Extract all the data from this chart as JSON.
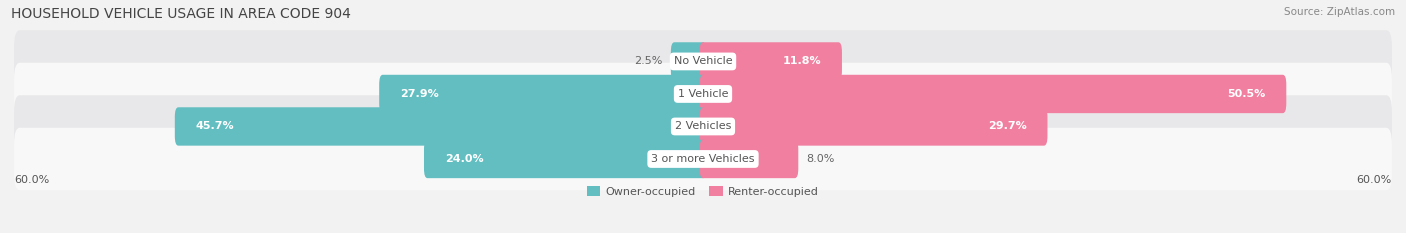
{
  "title": "HOUSEHOLD VEHICLE USAGE IN AREA CODE 904",
  "source": "Source: ZipAtlas.com",
  "categories": [
    "No Vehicle",
    "1 Vehicle",
    "2 Vehicles",
    "3 or more Vehicles"
  ],
  "owner_values": [
    2.5,
    27.9,
    45.7,
    24.0
  ],
  "renter_values": [
    11.8,
    50.5,
    29.7,
    8.0
  ],
  "owner_color": "#62bec1",
  "renter_color": "#f07fa0",
  "owner_label": "Owner-occupied",
  "renter_label": "Renter-occupied",
  "axis_max": 60.0,
  "axis_label_left": "60.0%",
  "axis_label_right": "60.0%",
  "bg_color": "#f2f2f2",
  "row_colors": [
    "#e8e8ea",
    "#f8f8f8",
    "#e8e8ea",
    "#f8f8f8"
  ],
  "title_fontsize": 10,
  "source_fontsize": 7.5,
  "value_fontsize": 8,
  "category_fontsize": 8
}
